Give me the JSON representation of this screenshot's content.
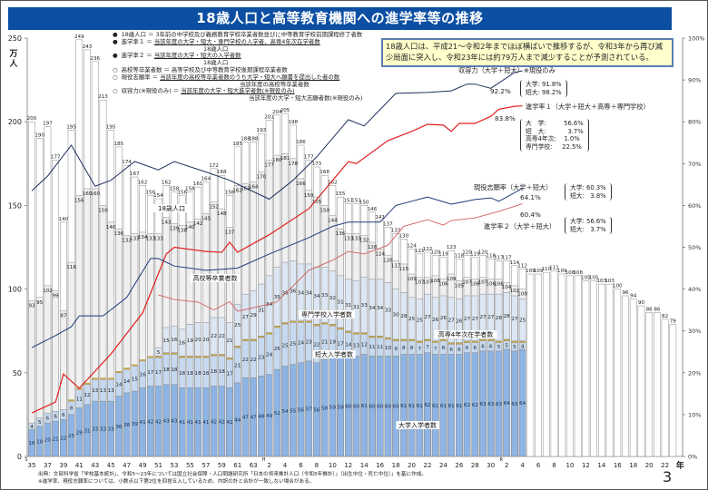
{
  "title": "18歳人口と高等教育機関への進学率等の推移",
  "legend": [
    {
      "bullet": "●",
      "term": "18歳人口",
      "eq": "＝",
      "def": "3年前の中学校及び義務教育学校卒業者数並びに中等教育学校前期課程修了者数",
      "den": ""
    },
    {
      "bullet": "●",
      "term": "進学率１",
      "eq": "＝",
      "def": "当該年度の大学・短大・専門学校の入学者、高専4年次在学者数",
      "den": "18歳人口"
    },
    {
      "bullet": "●",
      "term": "進学率２",
      "eq": "＝",
      "def": "当該年度の大学・短大の入学者数",
      "den": "18歳人口"
    },
    {
      "bullet": "○",
      "term": "高校等卒業者数",
      "eq": "＝",
      "def": "高等学校及び中等教育学校後期課程卒業者数",
      "den": ""
    },
    {
      "bullet": "○",
      "term": "現役志願率",
      "eq": "＝",
      "def": "当該年度の高校等卒業者数のうち大学・短大へ願書を提出した者の数",
      "den": "当該年度の高校等卒業者数"
    },
    {
      "bullet": "○",
      "term": "収容力(※現役のみ)",
      "eq": "＝",
      "def": "当該年度の大学・短大進学者数(※現役のみ)",
      "den": "当該年度の大学・短大志願者数(※現役のみ)"
    }
  ],
  "infobox": [
    "18歳人口は、平成21～令和2年までほぼ横ばいで推移するが、令和3年から再び減",
    "少局面に突入し、令和23年には約79万人まで減少することが予測されている。"
  ],
  "annotations": {
    "capacity": {
      "label": "収容力（大学＋短大）※現役のみ",
      "value": "92.2%",
      "breakdown": "大学: 91.8%\n短大: 98.2%"
    },
    "rate1": {
      "label": "進学率１（大学＋短大＋高専＋専門学校）",
      "value": "83.8%",
      "breakdown": "大　学:         56.6%\n短　大:           3.7%\n高専4年次:    1.0%\n専門学校:     22.5%"
    },
    "applicant": {
      "label": "現役志願率（大学＋短大）",
      "value": "64.1%",
      "breakdown": "大学: 60.3%\n短大:   3.8%"
    },
    "rate2": {
      "label": "進学率２（大学＋短大）",
      "value": "60.4%",
      "breakdown": "大学: 56.6%\n短大:   3.7%"
    }
  },
  "footnotes": [
    "出典：文部科学省「学校基本統計」、令和5～23年については国立社会保障・人口問題研究所「日本の将来推計人口（令和5年推計）」（出生中位・死亡中位）」を基に作成。",
    "※進学率、現役志願率については、小数点以下第2位を四捨五入しているため、内訳の計と合計が一致しない場合がある。"
  ],
  "page_number": "3",
  "colors": {
    "title_bg": "#0b4ea2",
    "university": "#8db4e2",
    "junior_college": "#c6d9f0",
    "kosen": "#c4a64a",
    "vocational": "#dde7f3",
    "hs_grads": "#f0f0f0",
    "population": "#ffffff",
    "capacity_line": "#1f2f5c",
    "rate1_line": "#e02020",
    "applicant_line": "#1f3a7a",
    "rate2_line": "#d06060"
  },
  "chart_data": {
    "type": "bar",
    "stacked": true,
    "title": "18歳人口と高等教育機関への進学率等の推移",
    "yunit": "万人",
    "yticks_left": [
      "0",
      "50",
      "100",
      "150",
      "200",
      "250"
    ],
    "ylim_left": [
      0,
      250
    ],
    "yticks_right": [
      "0%",
      "10%",
      "20%",
      "30%",
      "40%",
      "50%",
      "60%",
      "70%",
      "80%",
      "90%",
      "100%"
    ],
    "ylim_right": [
      0,
      100
    ],
    "x_start": 1960,
    "x_end": 2041,
    "actual_end": 2022,
    "xunit": "年",
    "xticks": [
      {
        "year": 1960,
        "era": "S",
        "label": "35"
      },
      {
        "year": 1962,
        "label": "37"
      },
      {
        "year": 1964,
        "label": "39"
      },
      {
        "year": 1966,
        "label": "41"
      },
      {
        "year": 1968,
        "label": "43"
      },
      {
        "year": 1970,
        "label": "45"
      },
      {
        "year": 1972,
        "label": "47"
      },
      {
        "year": 1974,
        "label": "49"
      },
      {
        "year": 1976,
        "label": "51"
      },
      {
        "year": 1978,
        "label": "53"
      },
      {
        "year": 1980,
        "label": "55"
      },
      {
        "year": 1982,
        "label": "57"
      },
      {
        "year": 1984,
        "label": "59"
      },
      {
        "year": 1986,
        "label": "61"
      },
      {
        "year": 1988,
        "label": "63"
      },
      {
        "year": 1990,
        "era": "H",
        "label": "2"
      },
      {
        "year": 1992,
        "label": "4"
      },
      {
        "year": 1994,
        "label": "6"
      },
      {
        "year": 1996,
        "label": "8"
      },
      {
        "year": 1998,
        "label": "10"
      },
      {
        "year": 2000,
        "label": "12"
      },
      {
        "year": 2002,
        "label": "14"
      },
      {
        "year": 2004,
        "label": "16"
      },
      {
        "year": 2006,
        "label": "18"
      },
      {
        "year": 2008,
        "label": "20"
      },
      {
        "year": 2010,
        "label": "22"
      },
      {
        "year": 2012,
        "label": "24"
      },
      {
        "year": 2014,
        "label": "26"
      },
      {
        "year": 2016,
        "label": "28"
      },
      {
        "year": 2018,
        "label": "30"
      },
      {
        "year": 2020,
        "era": "R",
        "label": "2"
      },
      {
        "year": 2022,
        "label": "4"
      },
      {
        "year": 2024,
        "label": "6"
      },
      {
        "year": 2026,
        "label": "8"
      },
      {
        "year": 2028,
        "label": "10"
      },
      {
        "year": 2030,
        "label": "12"
      },
      {
        "year": 2032,
        "label": "14"
      },
      {
        "year": 2034,
        "label": "16"
      },
      {
        "year": 2036,
        "label": "18"
      },
      {
        "year": 2038,
        "label": "20"
      },
      {
        "year": 2040,
        "label": "22"
      }
    ],
    "series_labels": {
      "population": "18歳人口",
      "hs_grads": "高校等卒業者数",
      "vocational": "専門学校入学者数",
      "junior_college": "短大入学者数",
      "kosen": "高専4年次在学者数",
      "university": "大学入学者数"
    },
    "population": [
      200,
      190,
      197,
      177,
      140,
      195,
      249,
      243,
      236,
      213,
      195,
      185,
      174,
      167,
      162,
      156,
      154,
      162,
      158,
      156,
      158,
      161,
      164,
      172,
      168,
      156,
      185,
      188,
      188,
      193,
      201,
      204,
      205,
      198,
      186,
      177,
      173,
      168,
      162,
      155,
      151,
      151,
      150,
      146,
      141,
      137,
      133,
      130,
      124,
      121,
      122,
      120,
      119,
      123,
      118,
      120,
      119,
      120,
      118,
      117,
      117,
      114,
      112,
      109,
      109,
      110,
      111,
      109,
      108,
      108,
      105,
      105,
      103,
      103,
      100,
      96,
      94,
      90,
      86,
      86,
      82,
      79
    ],
    "hs_grads": [
      93,
      95,
      102,
      99,
      87,
      116,
      156,
      160,
      160,
      150,
      140,
      136,
      132,
      133,
      134,
      133,
      133,
      143,
      139,
      138,
      140,
      142,
      145,
      152,
      148,
      137,
      162,
      163,
      164,
      170,
      177,
      180,
      181,
      178,
      166,
      159,
      155,
      150,
      144,
      136,
      133,
      133,
      132,
      128,
      124,
      120,
      117,
      115,
      109,
      107,
      107,
      108,
      106,
      109,
      105,
      107,
      106,
      107,
      106,
      106,
      104,
      102,
      100
    ],
    "university": [
      16,
      18,
      20,
      21,
      22,
      25,
      29,
      31,
      33,
      33,
      33,
      36,
      38,
      39,
      41,
      42,
      42,
      43,
      43,
      41,
      41,
      41,
      41,
      42,
      42,
      41,
      44,
      47,
      47,
      48,
      49,
      52,
      54,
      55,
      56,
      57,
      56,
      58,
      59,
      59,
      60,
      60,
      61,
      60,
      60,
      60,
      60,
      61,
      61,
      61,
      62,
      61,
      61,
      61,
      61,
      62,
      62,
      63,
      63,
      63,
      64,
      63,
      64
    ],
    "junior_college": [
      4,
      5,
      6,
      6,
      6,
      8,
      11,
      12,
      13,
      13,
      13,
      14,
      14,
      15,
      16,
      17,
      17,
      18,
      18,
      18,
      18,
      18,
      18,
      18,
      18,
      17,
      21,
      22,
      22,
      23,
      24,
      25,
      25,
      25,
      24,
      23,
      22,
      21,
      19,
      17,
      14,
      13,
      12,
      11,
      11,
      10,
      9,
      8,
      8,
      7,
      7,
      7,
      8,
      6,
      6,
      6,
      6,
      6,
      6,
      5,
      5,
      5,
      4
    ],
    "kosen_start": 1965,
    "kosen": 1,
    "vocational_start": 1976,
    "vocational": [
      5,
      15,
      16,
      16,
      19,
      20,
      20,
      22,
      22,
      21,
      25,
      27,
      29,
      31,
      34,
      35,
      36,
      36,
      34,
      34,
      34,
      33,
      32,
      31,
      31,
      31,
      33,
      34,
      34,
      33,
      30,
      28,
      25,
      25,
      27,
      26,
      26,
      27,
      26,
      27,
      27,
      27,
      27,
      28,
      28,
      27,
      25
    ],
    "lines": [
      {
        "key": "capacity",
        "name": "収容力（大学＋短大）※現役のみ",
        "points": [
          [
            1960,
            63.5
          ],
          [
            1962,
            67
          ],
          [
            1965,
            74.4
          ],
          [
            1968,
            64.6
          ],
          [
            1970,
            66
          ],
          [
            1973,
            70.5
          ],
          [
            1976,
            68.5
          ],
          [
            1978,
            70.5
          ],
          [
            1982,
            68
          ],
          [
            1985,
            66
          ],
          [
            1990,
            61.5
          ],
          [
            1993,
            66
          ],
          [
            1996,
            71.6
          ],
          [
            2000,
            80.5
          ],
          [
            2002,
            79
          ],
          [
            2006,
            86.8
          ],
          [
            2010,
            87
          ],
          [
            2013,
            87.4
          ],
          [
            2015,
            89
          ],
          [
            2016,
            89
          ],
          [
            2018,
            88
          ],
          [
            2021,
            91.8
          ],
          [
            2022,
            92.2
          ]
        ]
      },
      {
        "key": "rate1",
        "name": "進学率１（大学＋短大＋高専＋専門学校）",
        "points": [
          [
            1960,
            10.4
          ],
          [
            1963,
            13
          ],
          [
            1964,
            19.7
          ],
          [
            1966,
            16.3
          ],
          [
            1970,
            24.5
          ],
          [
            1974,
            34.3
          ],
          [
            1977,
            48.4
          ],
          [
            1978,
            50
          ],
          [
            1982,
            49
          ],
          [
            1984,
            48.8
          ],
          [
            1985,
            51.2
          ],
          [
            1986,
            48.8
          ],
          [
            1990,
            53
          ],
          [
            1995,
            59.2
          ],
          [
            2000,
            70.5
          ],
          [
            2001,
            70
          ],
          [
            2005,
            75.5
          ],
          [
            2008,
            77.7
          ],
          [
            2010,
            79.4
          ],
          [
            2012,
            79.2
          ],
          [
            2013,
            77.7
          ],
          [
            2014,
            79.6
          ],
          [
            2016,
            79.6
          ],
          [
            2018,
            81.3
          ],
          [
            2019,
            83
          ],
          [
            2021,
            83.7
          ],
          [
            2022,
            83.8
          ]
        ]
      },
      {
        "key": "applicant",
        "name": "現役志願率（大学＋短大）",
        "points": [
          [
            1960,
            26
          ],
          [
            1963,
            28.9
          ],
          [
            1965,
            31
          ],
          [
            1966,
            33.6
          ],
          [
            1969,
            33.6
          ],
          [
            1972,
            38
          ],
          [
            1975,
            47.3
          ],
          [
            1976,
            47.3
          ],
          [
            1978,
            45.5
          ],
          [
            1982,
            44.5
          ],
          [
            1986,
            45
          ],
          [
            1990,
            48.4
          ],
          [
            1995,
            52.3
          ],
          [
            1998,
            55
          ],
          [
            2000,
            56
          ],
          [
            2004,
            56
          ],
          [
            2006,
            60
          ],
          [
            2010,
            62
          ],
          [
            2013,
            60.3
          ],
          [
            2016,
            61.4
          ],
          [
            2018,
            61.8
          ],
          [
            2019,
            61
          ],
          [
            2020,
            62
          ],
          [
            2022,
            64.1
          ]
        ]
      },
      {
        "key": "rate2",
        "name": "進学率２（大学＋短大）",
        "points": [
          [
            1976,
            38.6
          ],
          [
            1978,
            37.5
          ],
          [
            1981,
            36.9
          ],
          [
            1983,
            35
          ],
          [
            1985,
            37
          ],
          [
            1986,
            34.7
          ],
          [
            1990,
            36.4
          ],
          [
            1991,
            37
          ],
          [
            1995,
            44.5
          ],
          [
            1998,
            46.9
          ],
          [
            2000,
            49
          ],
          [
            2002,
            48.4
          ],
          [
            2005,
            50.5
          ],
          [
            2007,
            55
          ],
          [
            2010,
            56.6
          ],
          [
            2012,
            55.3
          ],
          [
            2013,
            56.4
          ],
          [
            2016,
            57
          ],
          [
            2019,
            58.6
          ],
          [
            2022,
            60.4
          ]
        ]
      }
    ]
  }
}
